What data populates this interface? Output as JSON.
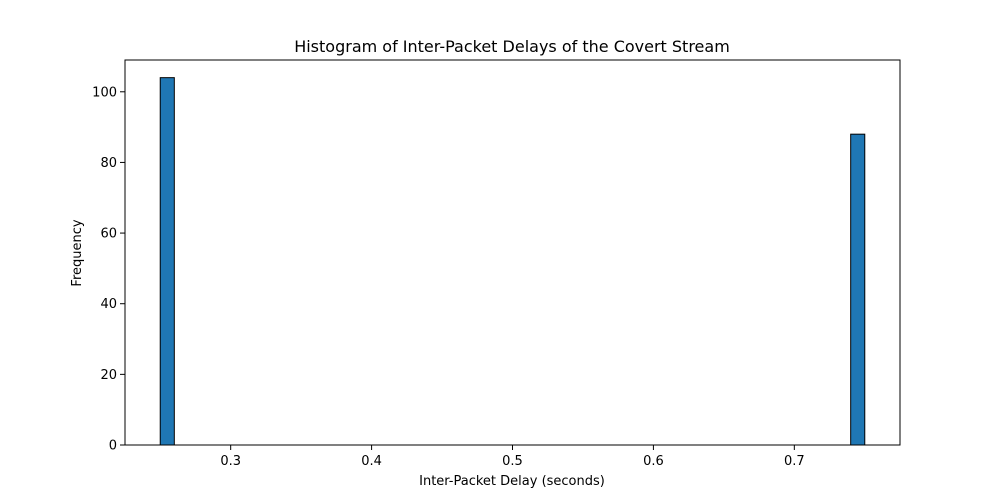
{
  "chart_data": {
    "type": "bar",
    "title": "Histogram of Inter-Packet Delays of the Covert Stream",
    "xlabel": "Inter-Packet Delay (seconds)",
    "ylabel": "Frequency",
    "xlim": [
      0.225,
      0.775
    ],
    "ylim": [
      0,
      109
    ],
    "xticks": [
      0.3,
      0.4,
      0.5,
      0.6,
      0.7
    ],
    "xtick_labels": [
      "0.3",
      "0.4",
      "0.5",
      "0.6",
      "0.7"
    ],
    "yticks": [
      0,
      20,
      40,
      60,
      80,
      100
    ],
    "ytick_labels": [
      "0",
      "20",
      "40",
      "60",
      "80",
      "100"
    ],
    "grid": false,
    "bar_color": "#1f77b4",
    "edge_color": "#000000",
    "bars": [
      {
        "x0": 0.25,
        "x1": 0.26,
        "value": 104
      },
      {
        "x0": 0.74,
        "x1": 0.75,
        "value": 88
      }
    ]
  }
}
